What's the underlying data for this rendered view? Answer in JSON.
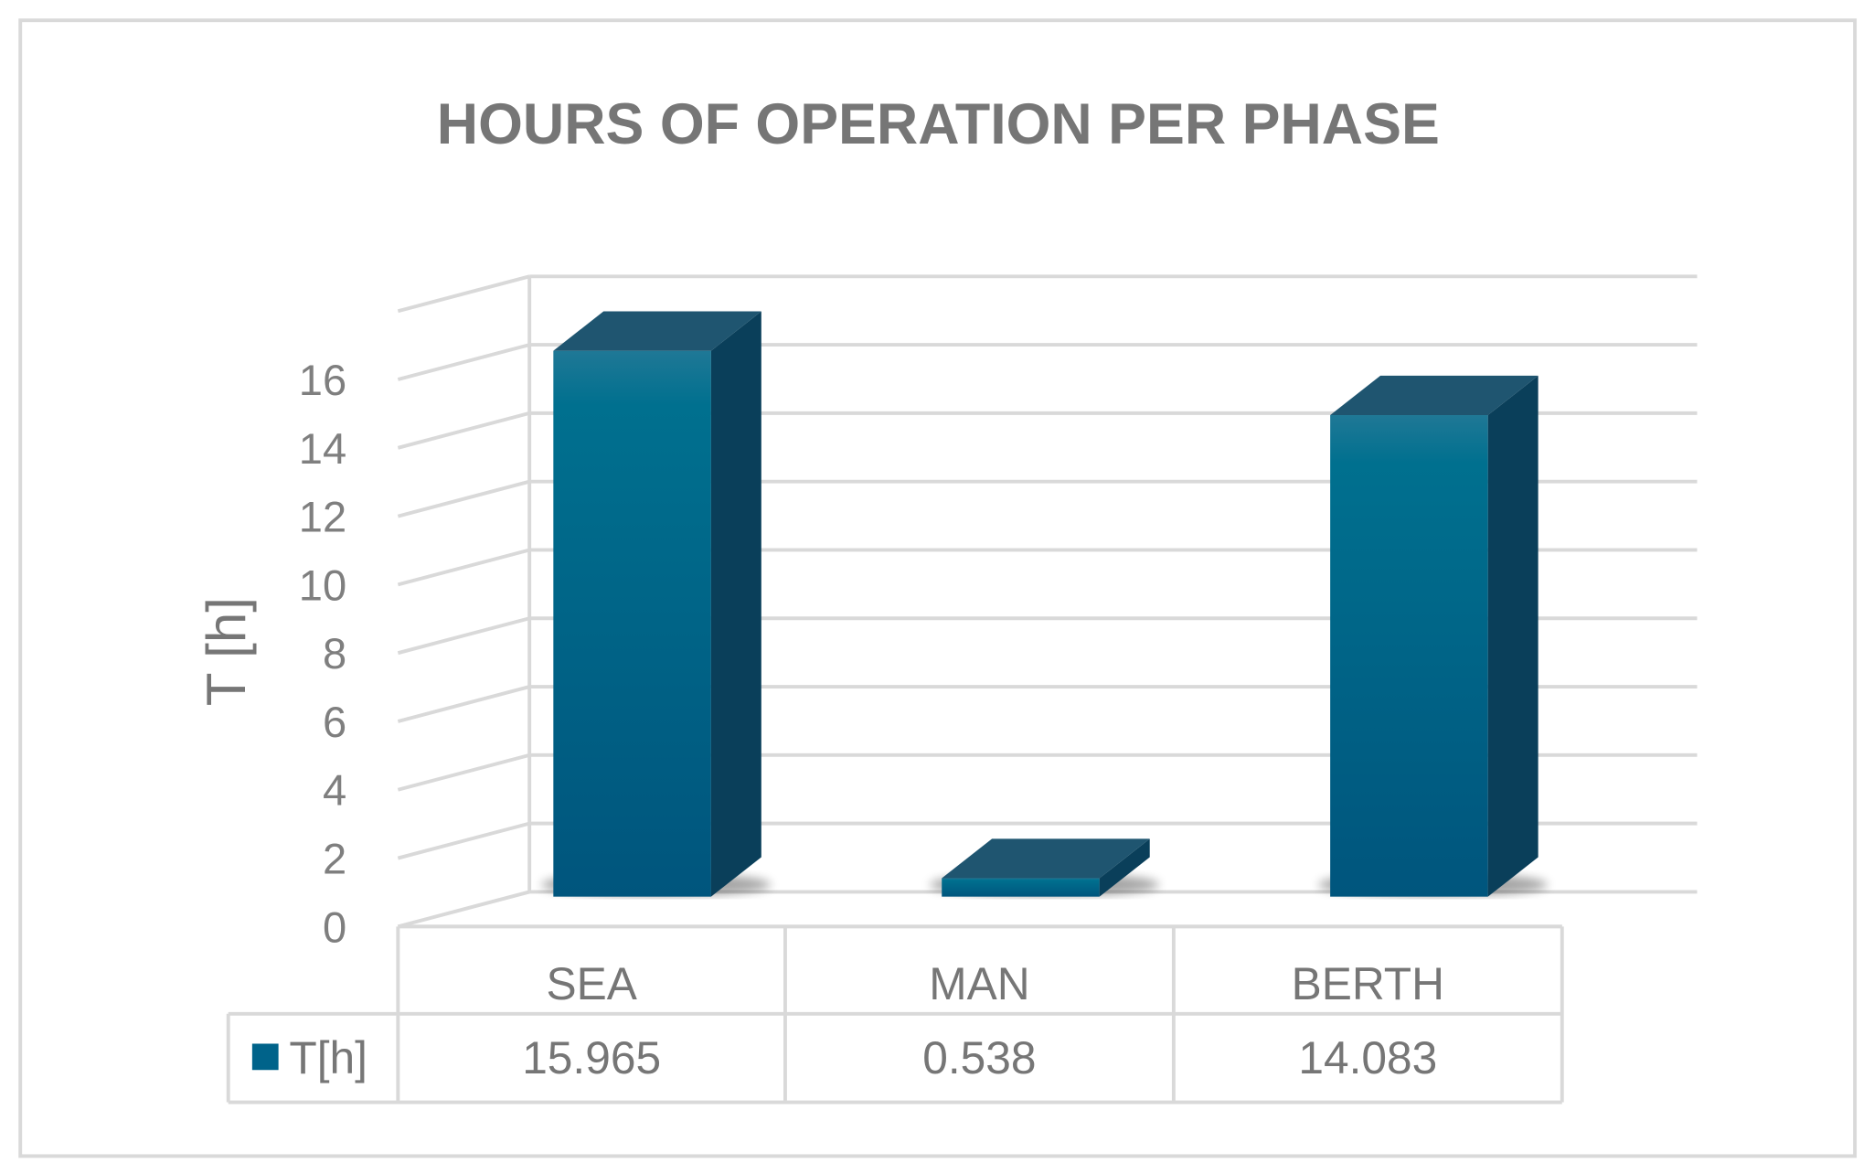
{
  "chart_data": {
    "type": "bar",
    "title": "HOURS OF OPERATION PER PHASE",
    "ylabel": "T [h]",
    "xlabel": "",
    "categories": [
      "SEA",
      "MAN",
      "BERTH"
    ],
    "series": [
      {
        "name": "T[h]",
        "values": [
          15.965,
          0.538,
          14.083
        ]
      }
    ],
    "value_labels": [
      "15.965",
      "0.538",
      "14.083"
    ],
    "ylim": [
      0,
      18
    ],
    "yticks": [
      0,
      2,
      4,
      6,
      8,
      10,
      12,
      14,
      16
    ],
    "grid": true,
    "style": "3d-column with data table",
    "legend": "data-table",
    "colors": {
      "bar_front_top": "#1f7896",
      "bar_front_bottom": "#00557d",
      "bar_side": "#0a3f5a",
      "bar_top": "#1f5570",
      "grid": "#d9d9d9",
      "text": "#767676"
    }
  }
}
